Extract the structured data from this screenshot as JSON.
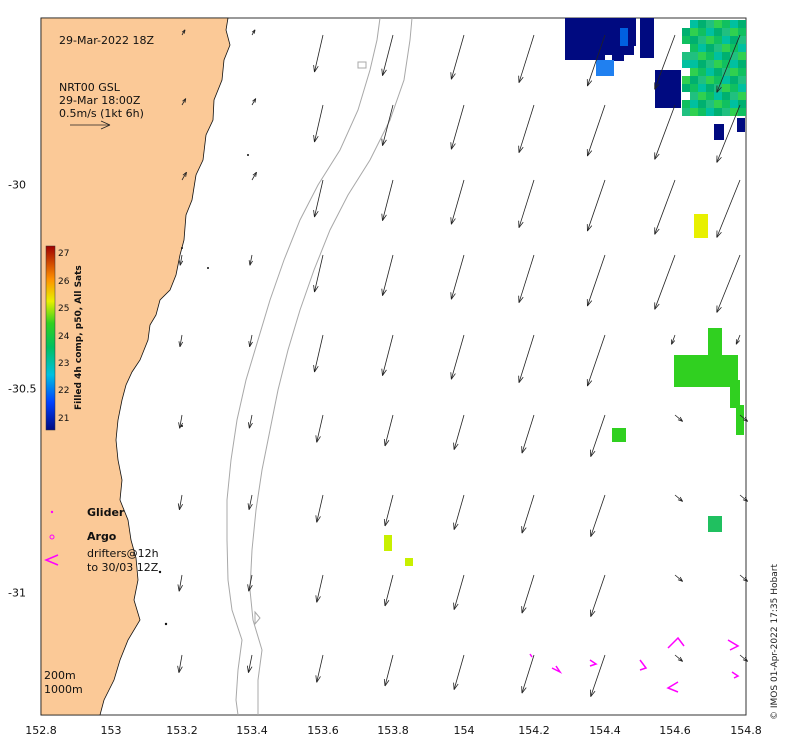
{
  "header": {
    "date": "29-Mar-2022 18Z"
  },
  "current_legend": {
    "line1": "NRT00 GSL",
    "line2": "29-Mar 18:00Z",
    "line3": "0.5m/s (1kt 6h)"
  },
  "colorbar": {
    "title": "Filled 4h comp, p50, All Sats",
    "ticks": [
      "27",
      "26",
      "25",
      "24",
      "23",
      "22",
      "21"
    ]
  },
  "legend": {
    "glider": "Glider",
    "argo": "Argo",
    "drifters_line1": "drifters@12h",
    "drifters_line2": "to 30/03 12Z"
  },
  "isobaths": {
    "line1": "200m",
    "line2": "1000m"
  },
  "axes": {
    "x_ticks": [
      "152.8",
      "153",
      "153.2",
      "153.4",
      "153.6",
      "153.8",
      "154",
      "154.2",
      "154.4",
      "154.6",
      "154.8"
    ],
    "y_ticks": [
      "-30",
      "-30.5",
      "-31"
    ]
  },
  "credit": "© IMOS 01-Apr-2022 17:35 Hobart",
  "colors": {
    "land": "#fbc997",
    "isobath": "#a8a8a8",
    "arrow": "#222222",
    "drifter": "#ff00ff",
    "cold": "#000a80"
  }
}
